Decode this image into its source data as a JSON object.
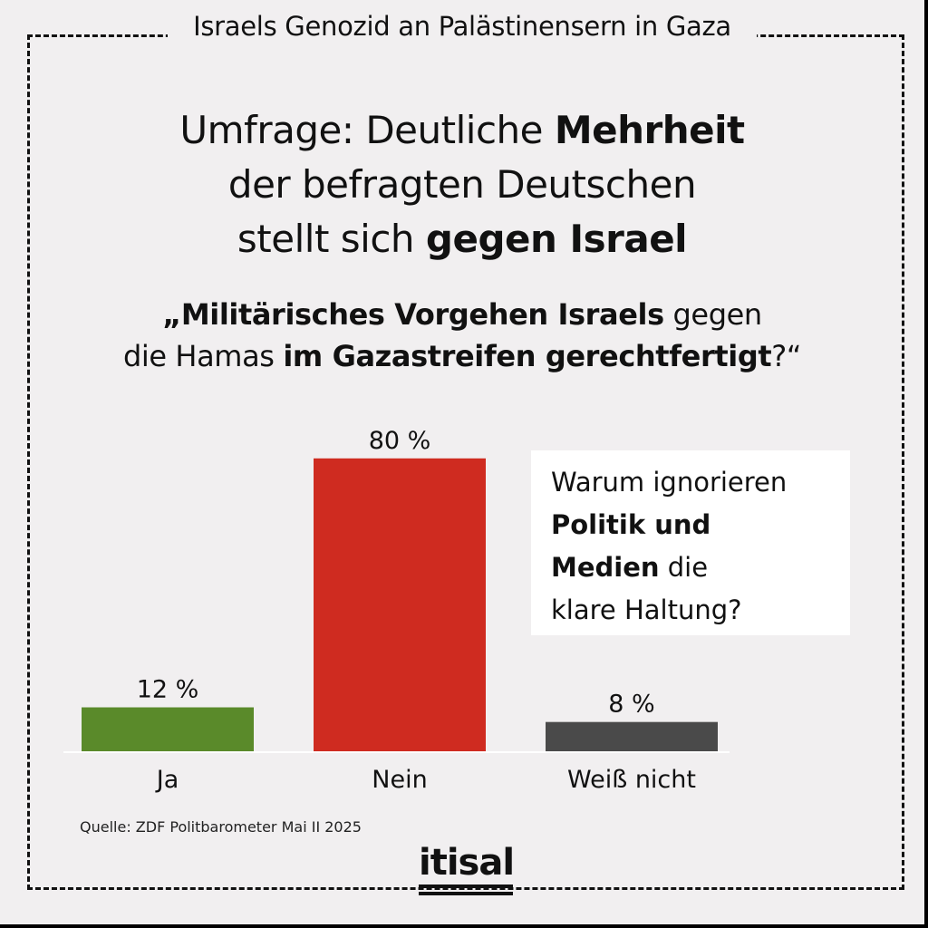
{
  "header": {
    "topic": "Israels Genozid an Palästinensern in Gaza"
  },
  "headline": {
    "line1_pre": "Umfrage: Deutliche ",
    "line1_bold": "Mehrheit",
    "line2": "der befragten Deutschen",
    "line3_pre": "stellt sich ",
    "line3_bold": "gegen Israel"
  },
  "question": {
    "open_bold": "„Militärisches Vorgehen Israels",
    "mid": " gegen",
    "line2_pre": "die Hamas ",
    "line2_bold": "im Gazastreifen gerechtfertigt",
    "close": "?“"
  },
  "callout": {
    "line1": "Warum ignorieren",
    "line2_bold": "Politik und",
    "line3_bold": "Medien",
    "line3_rest": " die",
    "line4": "klare Haltung?"
  },
  "chart_data": {
    "type": "bar",
    "categories": [
      "Ja",
      "Nein",
      "Weiß nicht"
    ],
    "values": [
      12,
      80,
      8
    ],
    "data_labels": [
      "12 %",
      "80 %",
      "8 %"
    ],
    "colors": [
      "#5a8a2a",
      "#cf2b20",
      "#4a4a4a"
    ],
    "ylim": [
      0,
      100
    ],
    "grid": false,
    "legend": "none"
  },
  "source": "Quelle: ZDF Politbarometer Mai II 2025",
  "logo": {
    "text": "itisal"
  }
}
